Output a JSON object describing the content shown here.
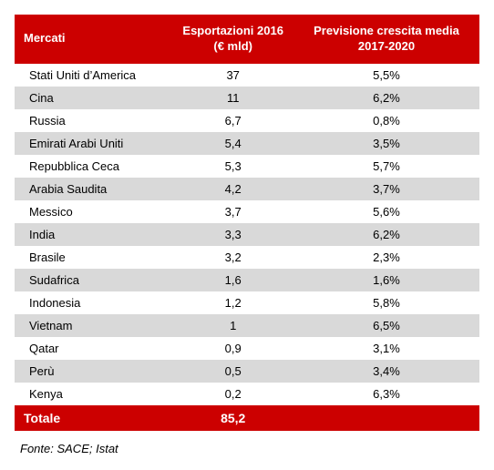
{
  "table": {
    "type": "table",
    "header_bg": "#cc0000",
    "header_text_color": "#ffffff",
    "row_odd_bg": "#ffffff",
    "row_even_bg": "#d9d9d9",
    "total_bg": "#cc0000",
    "total_text_color": "#ffffff",
    "font_family": "Arial",
    "font_size": 13,
    "columns": [
      {
        "label": "Mercati",
        "align": "left",
        "width_pct": 34
      },
      {
        "label": "Esportazioni 2016 (€ mld)",
        "align": "center",
        "width_pct": 26
      },
      {
        "label": "Previsione crescita media 2017-2020",
        "align": "center",
        "width_pct": 40
      }
    ],
    "rows": [
      {
        "market": "Stati Uniti d’America",
        "exports": "37",
        "growth": "5,5%"
      },
      {
        "market": "Cina",
        "exports": "11",
        "growth": "6,2%"
      },
      {
        "market": "Russia",
        "exports": "6,7",
        "growth": "0,8%"
      },
      {
        "market": "Emirati Arabi Uniti",
        "exports": "5,4",
        "growth": "3,5%"
      },
      {
        "market": "Repubblica Ceca",
        "exports": "5,3",
        "growth": "5,7%"
      },
      {
        "market": "Arabia Saudita",
        "exports": "4,2",
        "growth": "3,7%"
      },
      {
        "market": "Messico",
        "exports": "3,7",
        "growth": "5,6%"
      },
      {
        "market": "India",
        "exports": "3,3",
        "growth": "6,2%"
      },
      {
        "market": "Brasile",
        "exports": "3,2",
        "growth": "2,3%"
      },
      {
        "market": "Sudafrica",
        "exports": "1,6",
        "growth": "1,6%"
      },
      {
        "market": "Indonesia",
        "exports": "1,2",
        "growth": "5,8%"
      },
      {
        "market": "Vietnam",
        "exports": "1",
        "growth": "6,5%"
      },
      {
        "market": "Qatar",
        "exports": "0,9",
        "growth": "3,1%"
      },
      {
        "market": "Perù",
        "exports": "0,5",
        "growth": "3,4%"
      },
      {
        "market": "Kenya",
        "exports": "0,2",
        "growth": "6,3%"
      }
    ],
    "total": {
      "label": "Totale",
      "exports": "85,2",
      "growth": ""
    }
  },
  "source": "Fonte: SACE; Istat"
}
